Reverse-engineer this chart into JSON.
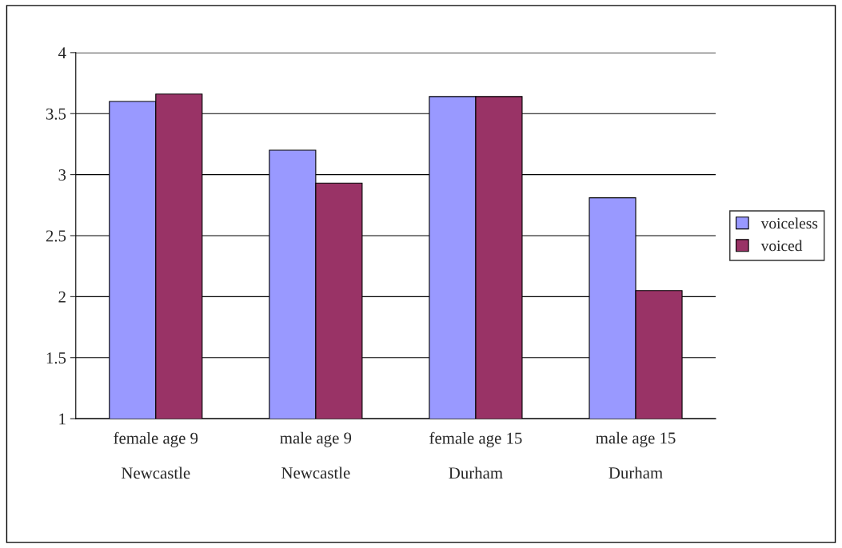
{
  "chart_data": {
    "type": "bar",
    "categories": [
      "female age 9\n\nNewcastle",
      "male age 9\n\nNewcastle",
      "female age 15\n\nDurham",
      "male age 15\n\nDurham"
    ],
    "series": [
      {
        "name": "voiceless",
        "color": "#9999ff",
        "values": [
          3.6,
          3.2,
          3.64,
          2.81
        ]
      },
      {
        "name": "voiced",
        "color": "#993366",
        "values": [
          3.66,
          2.93,
          3.64,
          2.05
        ]
      }
    ],
    "ylim": [
      1,
      4
    ],
    "yticks": [
      1,
      1.5,
      2,
      2.5,
      3,
      3.5,
      4
    ],
    "grid": "y",
    "legend": "right"
  }
}
